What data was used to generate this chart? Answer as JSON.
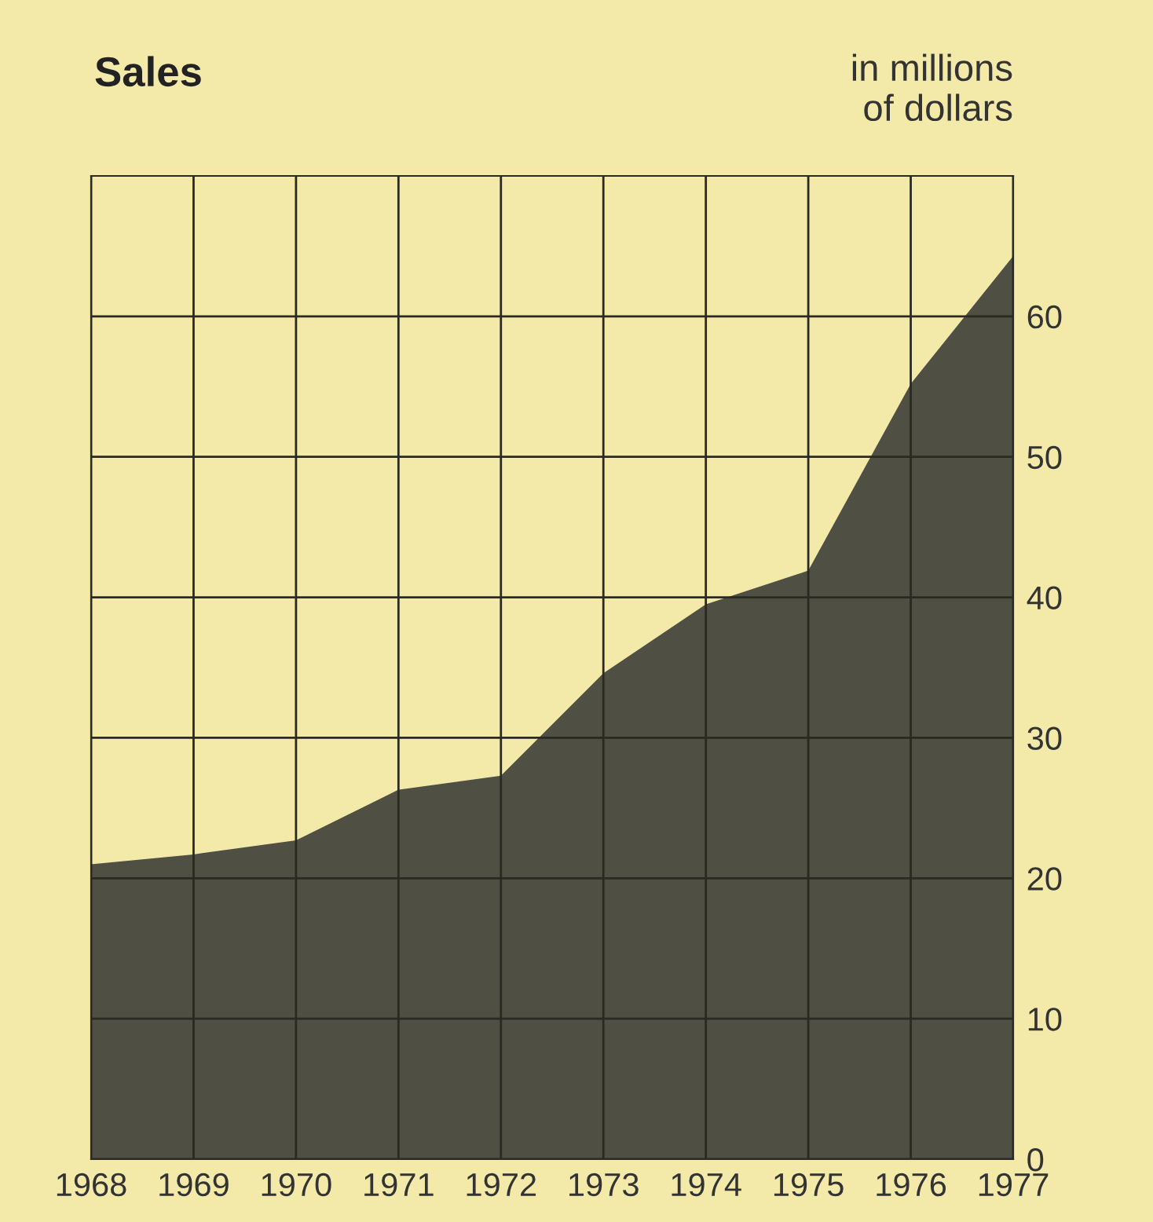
{
  "chart_data": {
    "type": "area",
    "title": "Sales",
    "ylabel": "in millions\nof dollars",
    "x": [
      1968,
      1969,
      1970,
      1971,
      1972,
      1973,
      1974,
      1975,
      1976,
      1977
    ],
    "series": [
      {
        "color": "#4f4f44",
        "values": [
          21.0,
          21.7,
          22.7,
          26.3,
          27.3,
          34.6,
          39.5,
          41.9,
          55.2,
          64.3
        ]
      }
    ],
    "xlim": [
      1968,
      1977
    ],
    "xticks": [
      1968,
      1969,
      1970,
      1971,
      1972,
      1973,
      1974,
      1975,
      1976,
      1977
    ],
    "ylim": [
      0,
      70
    ],
    "yticks": [
      0,
      10,
      20,
      30,
      40,
      50,
      60
    ],
    "grid": true
  }
}
